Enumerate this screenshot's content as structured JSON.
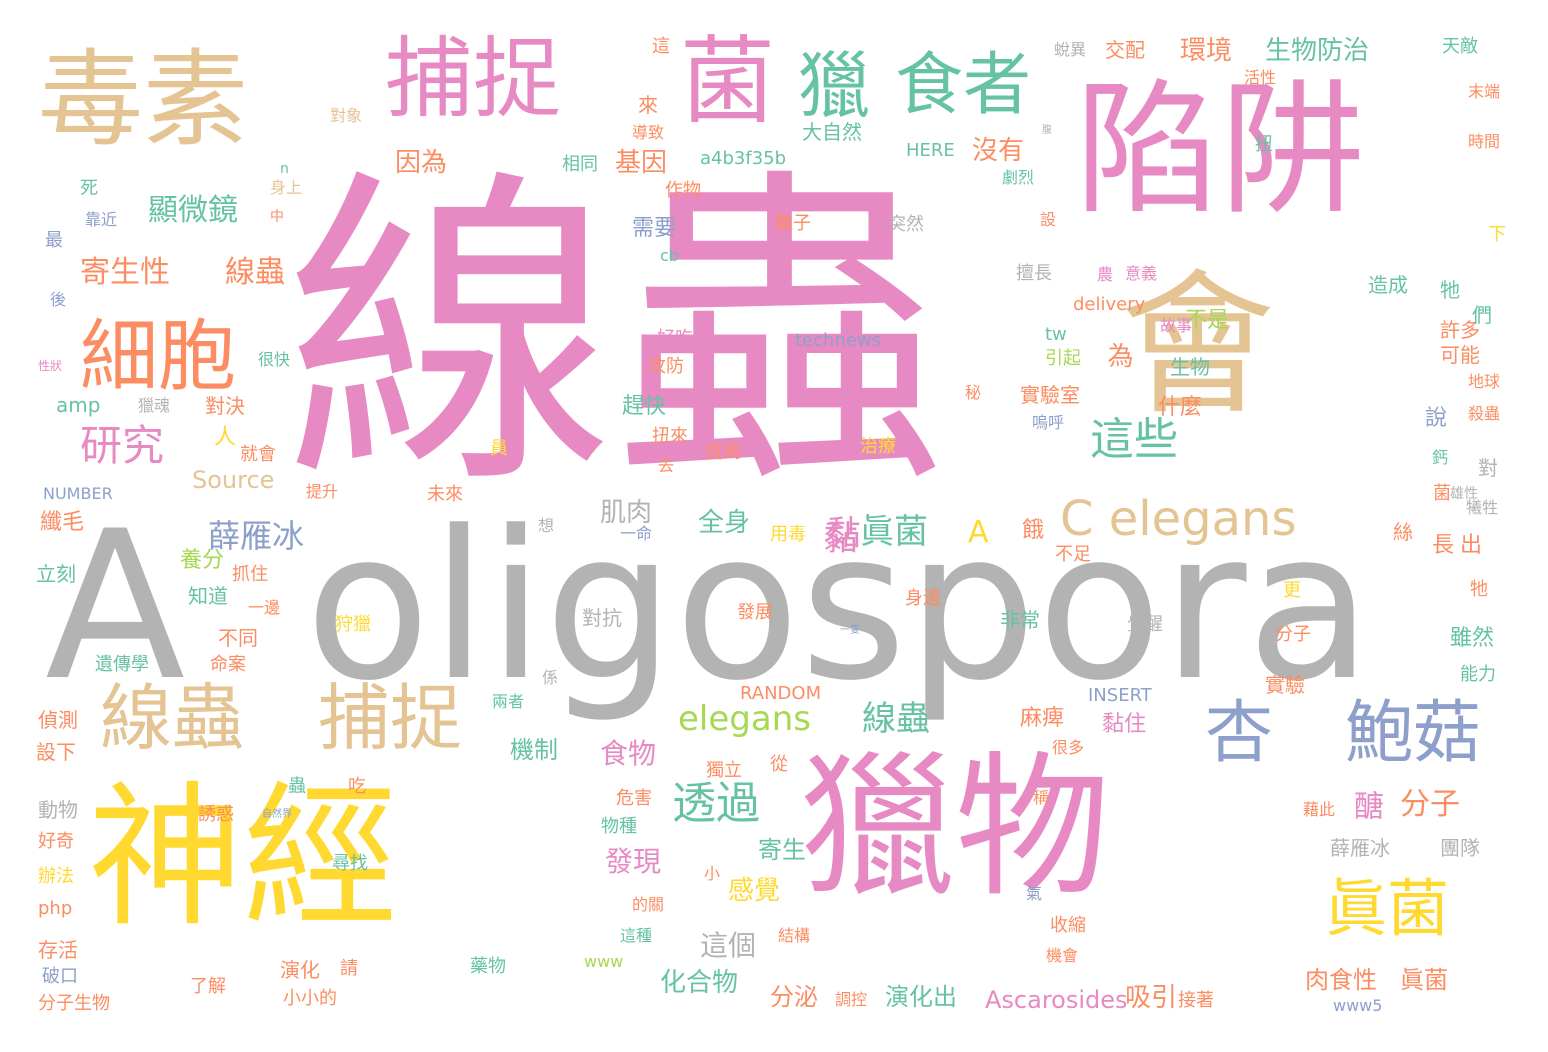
{
  "palette": {
    "pink": "#e78ac3",
    "tan": "#e5c494",
    "yellow": "#ffd92f",
    "gray": "#b3b3b3",
    "blue": "#8da0cb",
    "green": "#66c2a5",
    "orange": "#fc8d62",
    "lime": "#a6d854"
  },
  "words": [
    "線蟲",
    "A",
    "oligospora",
    "陷阱",
    "獵物",
    "神經",
    "會",
    "毒素",
    "捕捉",
    "菌",
    "獵",
    "食者",
    "細胞",
    "線蟲",
    "捕捉",
    "杏",
    "鮑菇",
    "眞菌",
    "C elegans",
    "研究",
    "這些",
    "透過",
    "薛雁冰",
    "眞菌",
    "A",
    "顯微鏡",
    "寄生性",
    "線蟲",
    "環境",
    "生物防治",
    "交配",
    "大自然",
    "elegans",
    "線蟲",
    "肌肉",
    "全身",
    "黏",
    "醣",
    "分子",
    "麻痺",
    "黏住",
    "食物",
    "機制",
    "發現",
    "寄生",
    "感覺",
    "這個",
    "化合物",
    "分泌",
    "演化出",
    "Ascarosides",
    "吸引",
    "肉食性",
    "眞菌",
    "薛雁冰",
    "團隊",
    "沒有",
    "因為",
    "基因",
    "相同",
    "a4b3f35b",
    "作物",
    "需要",
    "實驗室",
    "什麼",
    "不是",
    "為",
    "生物",
    "說",
    "對",
    "許多",
    "可能",
    "造成",
    "牠",
    "們",
    "天敵",
    "末端",
    "時間",
    "活性",
    "來",
    "導致",
    "對象",
    "n",
    "身上",
    "中",
    "最",
    "靠近",
    "死",
    "後",
    "HERE",
    "劇烈",
    "扭",
    "突然",
    "離子",
    "擅長",
    "農",
    "意義",
    "delivery",
    "technews",
    "tw",
    "引起",
    "故事",
    "好吃",
    "攻防",
    "很快",
    "獵魂",
    "amp",
    "對決",
    "人",
    "就會",
    "Source",
    "NUMBER",
    "提升",
    "未來",
    "趕快",
    "扭來",
    "去",
    "找到",
    "治療",
    "員",
    "嗚呼",
    "秘",
    "纖毛",
    "立刻",
    "想",
    "一命",
    "用毒",
    "餓",
    "不足",
    "長",
    "出",
    "絲",
    "犧牲",
    "菌",
    "鈣",
    "殺蟲",
    "地球",
    "養分",
    "知道",
    "抓住",
    "一邊",
    "不同",
    "命案",
    "遺傳學",
    "狩獵",
    "發展",
    "對抗",
    "身邊",
    "非常",
    "覺醒",
    "分子",
    "雖然",
    "能力",
    "RANDOM",
    "INSERT",
    "實驗",
    "兩者",
    "係",
    "偵測",
    "設下",
    "獨立",
    "從",
    "很多",
    "稱",
    "藉此",
    "蟲",
    "吃",
    "誘惑",
    "動物",
    "自然界",
    "尋找",
    "危害",
    "物種",
    "好奇",
    "辦法",
    "php",
    "小",
    "的關",
    "氣",
    "收縮",
    "這種",
    "結構",
    "機會",
    "存活",
    "破口",
    "了解",
    "演化",
    "請",
    "藥物",
    "www",
    "分子生物",
    "小小的",
    "調控",
    "接著",
    "www5",
    "更",
    "牠",
    "下",
    "一隻",
    "這",
    "蛻異",
    "設",
    "腹",
    "雄性",
    "cb",
    "性狀",
    "黏"
  ]
}
